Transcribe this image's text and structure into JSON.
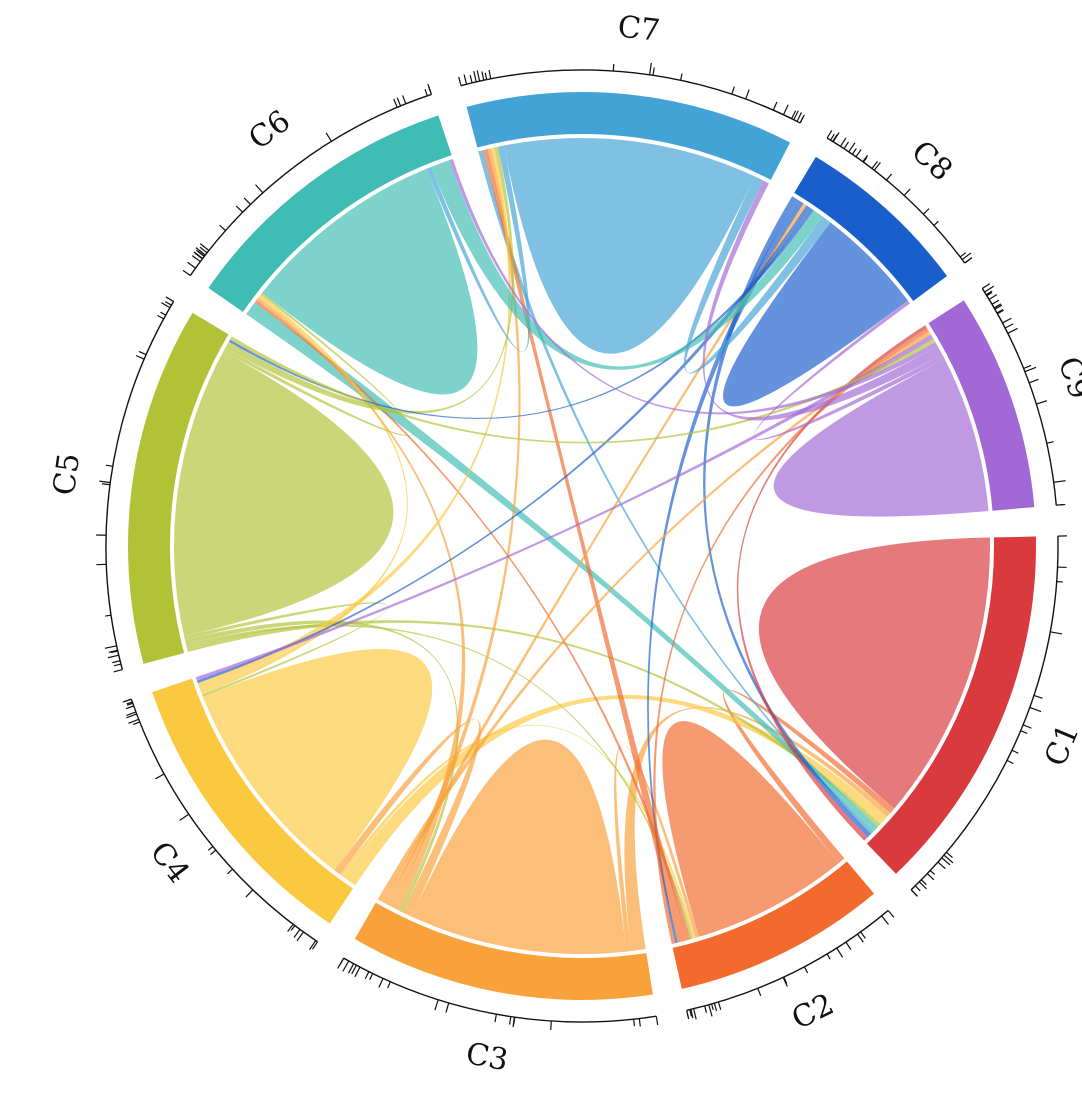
{
  "chart_data": {
    "type": "chord",
    "title": "",
    "groups": [
      {
        "name": "C1",
        "color": "#d93a3e"
      },
      {
        "name": "C2",
        "color": "#f26a2e"
      },
      {
        "name": "C3",
        "color": "#f9a13a"
      },
      {
        "name": "C4",
        "color": "#fbc93f"
      },
      {
        "name": "C5",
        "color": "#b1c236"
      },
      {
        "name": "C6",
        "color": "#3fbdb4"
      },
      {
        "name": "C7",
        "color": "#44a3d6"
      },
      {
        "name": "C8",
        "color": "#1a5ecb"
      },
      {
        "name": "C9",
        "color": "#a268d6"
      }
    ],
    "matrix": [
      [
        1200,
        25,
        20,
        40,
        15,
        30,
        10,
        20,
        20
      ],
      [
        30,
        650,
        15,
        10,
        10,
        15,
        40,
        10,
        15
      ],
      [
        60,
        20,
        900,
        40,
        15,
        35,
        25,
        20,
        20
      ],
      [
        60,
        15,
        30,
        900,
        10,
        20,
        30,
        10,
        15
      ],
      [
        20,
        12,
        20,
        15,
        1200,
        15,
        30,
        10,
        15
      ],
      [
        60,
        12,
        12,
        15,
        10,
        850,
        20,
        80,
        15
      ],
      [
        20,
        20,
        15,
        12,
        15,
        25,
        1050,
        40,
        25
      ],
      [
        25,
        30,
        15,
        20,
        15,
        45,
        40,
        450,
        15
      ],
      [
        15,
        15,
        15,
        20,
        15,
        20,
        40,
        20,
        650
      ]
    ],
    "grid": false,
    "legend": "none"
  }
}
